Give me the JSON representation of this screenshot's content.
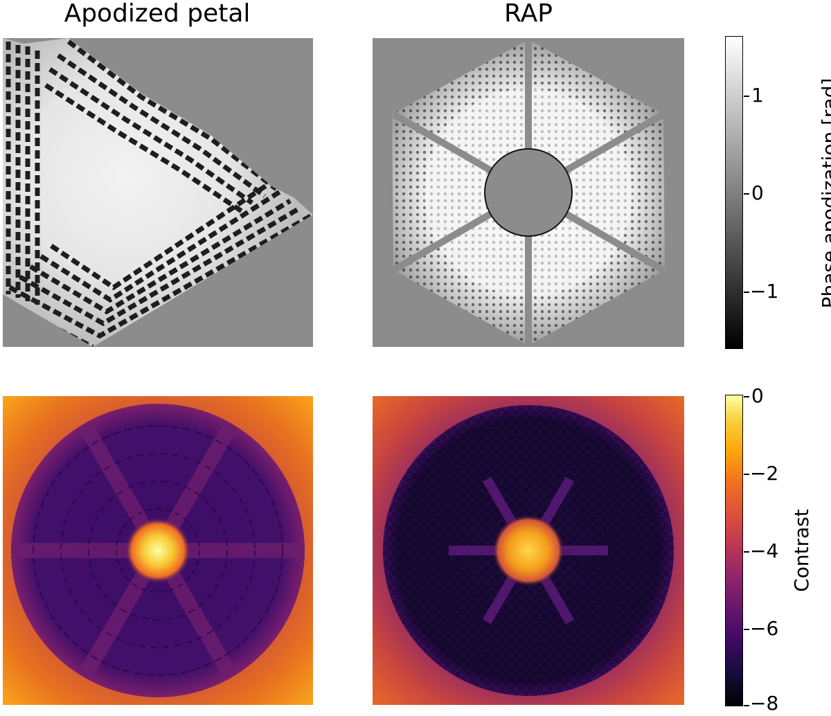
{
  "titles": {
    "left": "Apodized petal",
    "right": "RAP"
  },
  "colorbars": {
    "phase": {
      "label": "Phase apodization [rad]",
      "ticks": [
        "1",
        "0",
        "−1"
      ],
      "range": [
        -1.6,
        1.6
      ],
      "colormap": "gray"
    },
    "contrast": {
      "label": "Contrast",
      "ticks": [
        "0",
        "−2",
        "−4",
        "−6",
        "−8"
      ],
      "range": [
        -8,
        0
      ],
      "colormap": "inferno"
    }
  },
  "panels": {
    "top_left": "apodized-petal-phase-map",
    "top_right": "rap-phase-map",
    "bottom_left": "apodized-petal-contrast-map",
    "bottom_right": "rap-contrast-map"
  }
}
